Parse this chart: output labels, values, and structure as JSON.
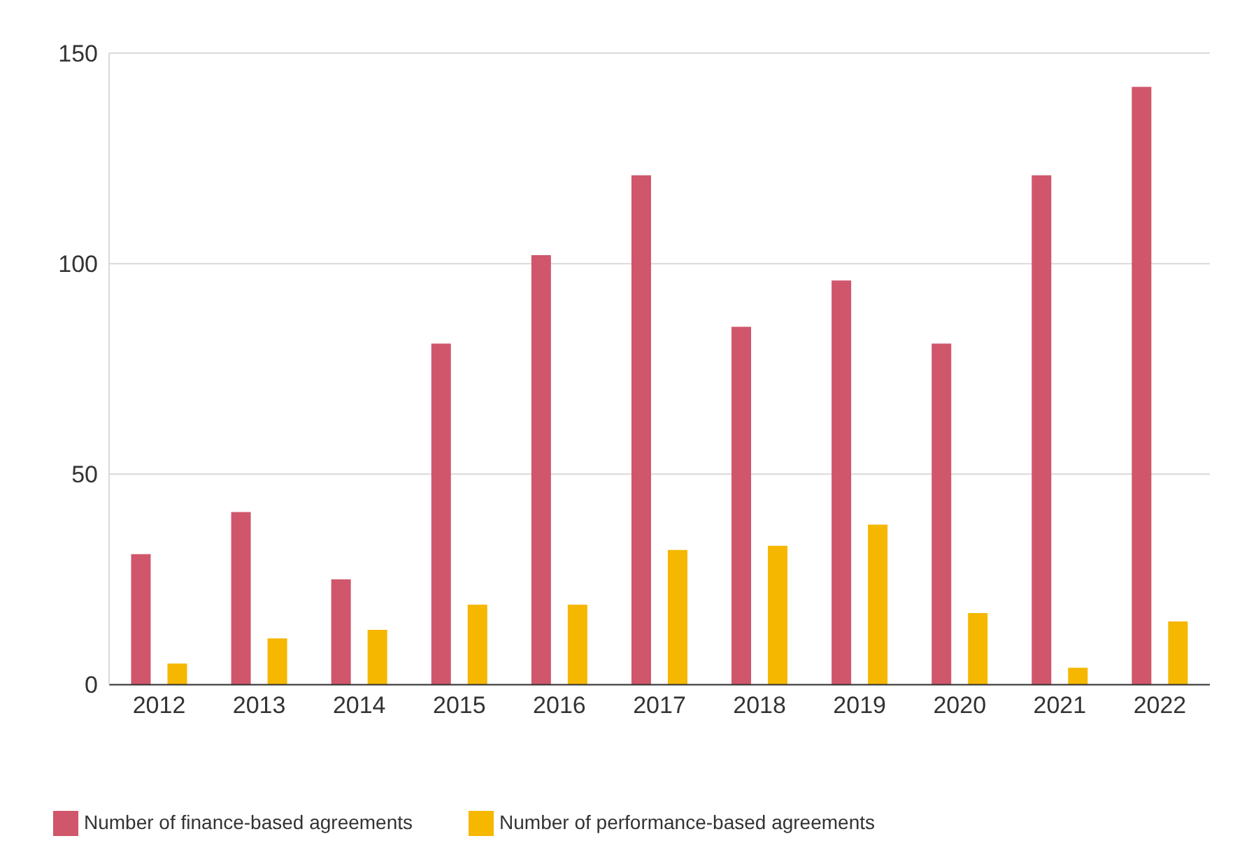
{
  "chart_data": {
    "type": "bar",
    "categories": [
      "2012",
      "2013",
      "2014",
      "2015",
      "2016",
      "2017",
      "2018",
      "2019",
      "2020",
      "2021",
      "2022"
    ],
    "series": [
      {
        "name": "Number of finance-based agreements",
        "color": "#d0566b",
        "values": [
          31,
          41,
          25,
          81,
          102,
          121,
          85,
          96,
          81,
          121,
          142
        ]
      },
      {
        "name": "Number of performance-based agreements",
        "color": "#f5b700",
        "values": [
          5,
          11,
          13,
          19,
          19,
          32,
          33,
          38,
          17,
          4,
          15
        ]
      }
    ],
    "ylim": [
      0,
      150
    ],
    "yticks": [
      0,
      50,
      100,
      150
    ],
    "grid": "y",
    "legend": "bottom left"
  }
}
